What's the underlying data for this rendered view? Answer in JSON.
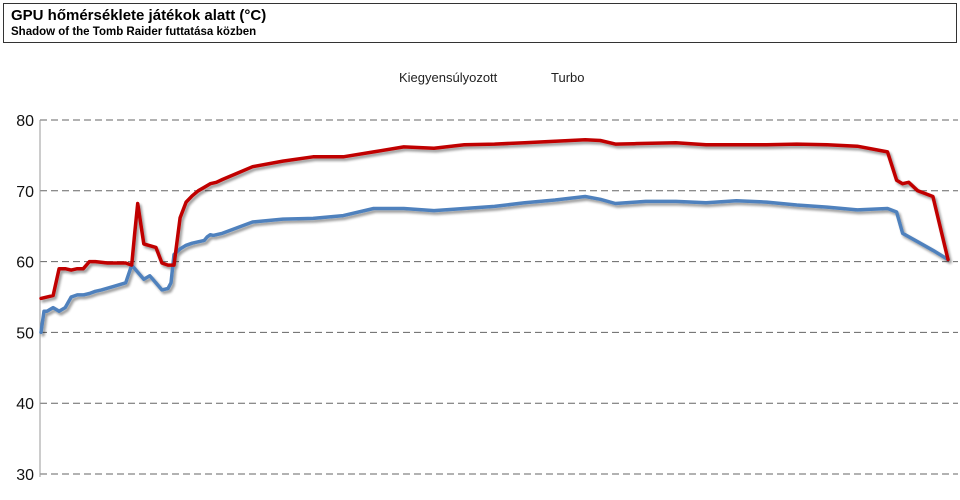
{
  "header": {
    "title": "GPU hőmérséklete játékok alatt (°C)",
    "subtitle": "Shadow of the Tomb Raider futtatása közben"
  },
  "chart_data": {
    "type": "line",
    "title": "GPU hőmérséklete játékok alatt (°C)",
    "subtitle": "Shadow of the Tomb Raider futtatása közben",
    "xlabel": "",
    "ylabel": "",
    "ylim": [
      30,
      80
    ],
    "yticks": [
      30,
      40,
      50,
      60,
      70,
      80
    ],
    "grid": true,
    "legend_position": "top-center",
    "series": [
      {
        "name": "Kiegyensúlyozott",
        "color": "#4f81bd",
        "x": [
          0,
          1,
          2,
          4,
          6,
          8,
          10,
          12,
          14,
          16,
          18,
          20,
          24,
          28,
          30,
          34,
          36,
          38,
          40,
          42,
          43,
          44,
          46,
          48,
          50,
          52,
          54,
          55,
          56,
          57,
          58,
          60,
          65,
          70,
          80,
          90,
          100,
          110,
          120,
          130,
          140,
          150,
          160,
          170,
          180,
          185,
          190,
          200,
          210,
          220,
          230,
          240,
          250,
          260,
          270,
          280,
          283,
          285,
          290,
          295,
          300
        ],
        "values": [
          50,
          53,
          53,
          53.5,
          53,
          53.5,
          55,
          55.3,
          55.3,
          55.5,
          55.8,
          56,
          56.5,
          57,
          59.5,
          57.5,
          58,
          57,
          56,
          56.2,
          57,
          61,
          61.8,
          62.3,
          62.6,
          62.8,
          63,
          63.5,
          63.8,
          63.7,
          63.8,
          64,
          64.8,
          65.6,
          66,
          66.1,
          66.5,
          67.5,
          67.5,
          67.2,
          67.5,
          67.8,
          68.3,
          68.7,
          69.2,
          68.8,
          68.2,
          68.5,
          68.5,
          68.3,
          68.6,
          68.4,
          68,
          67.7,
          67.3,
          67.5,
          67,
          64,
          62.8,
          61.6,
          60.3
        ]
      },
      {
        "name": "Turbo",
        "color": "#c00000",
        "x": [
          0,
          4,
          6,
          8,
          10,
          12,
          14,
          16,
          18,
          22,
          26,
          28,
          30,
          31,
          32,
          34,
          38,
          40,
          42,
          44,
          46,
          48,
          50,
          52,
          54,
          56,
          58,
          60,
          65,
          70,
          80,
          90,
          100,
          110,
          120,
          130,
          140,
          150,
          160,
          170,
          180,
          185,
          190,
          200,
          210,
          220,
          230,
          240,
          250,
          260,
          270,
          280,
          283,
          285,
          287,
          290,
          295,
          300
        ],
        "values": [
          54.8,
          55.2,
          59,
          59,
          58.8,
          59,
          59,
          60,
          60,
          59.8,
          59.8,
          59.8,
          59.5,
          64,
          68.2,
          62.5,
          62,
          59.8,
          59.5,
          59.5,
          66.2,
          68.4,
          69.3,
          70,
          70.5,
          71,
          71.2,
          71.6,
          72.5,
          73.4,
          74.2,
          74.8,
          74.8,
          75.5,
          76.2,
          76,
          76.5,
          76.6,
          76.8,
          77,
          77.2,
          77.1,
          76.6,
          76.7,
          76.8,
          76.5,
          76.5,
          76.5,
          76.6,
          76.5,
          76.3,
          75.5,
          71.5,
          71,
          71.2,
          70,
          69.2,
          60.3
        ]
      }
    ]
  }
}
